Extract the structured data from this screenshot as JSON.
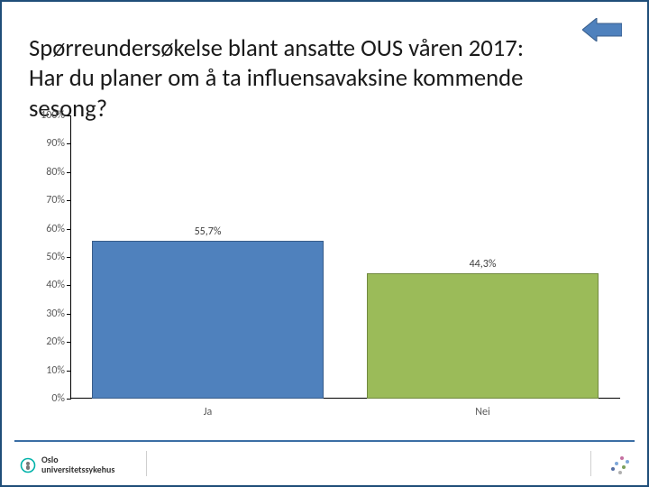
{
  "title": {
    "line1": "Spørreundersøkelse blant ansatte OUS våren 2017:",
    "line2": "Har du planer om å ta influensavaksine kommende sesong?",
    "fontsize_pt": 20,
    "font_weight": 400,
    "color": "#1a1a1a"
  },
  "nav": {
    "back_arrow_color": "#4f81bd",
    "back_arrow_border": "#385d8a"
  },
  "chart": {
    "type": "bar",
    "categories": [
      "Ja",
      "Nei"
    ],
    "values": [
      55.7,
      44.3
    ],
    "value_labels": [
      "55,7%",
      "44,3%"
    ],
    "bar_colors": [
      "#4f81bd",
      "#9bbb59"
    ],
    "bar_border_colors": [
      "#385d8a",
      "#71893f"
    ],
    "ylim": [
      0,
      100
    ],
    "ytick_step": 10,
    "ytick_suffix": "%",
    "tick_fontsize_pt": 9,
    "tick_color": "#595959",
    "value_label_fontsize_pt": 9,
    "value_label_color": "#404040",
    "xlabel_fontsize_pt": 9,
    "xlabel_color": "#595959",
    "background_color": "#ffffff",
    "bar_width_pct": 84
  },
  "footer": {
    "rule_color": "#3b6ea5",
    "logo_text_line1": "Oslo",
    "logo_text_line2": "universitetssykehus",
    "logo_circle_stroke": "#00b2a9",
    "dot_colors": [
      "#c56fa0",
      "#7da7d9",
      "#7da7d9",
      "#7ba05b",
      "#566fa3",
      "#b0b0b0"
    ]
  }
}
